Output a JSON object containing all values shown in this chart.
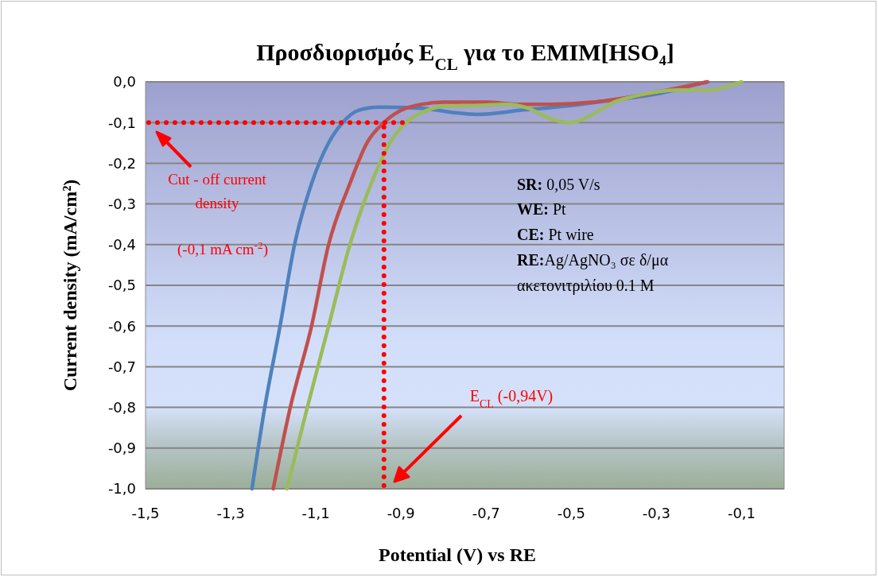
{
  "chart_data": {
    "type": "line",
    "title": "Προσδιορισμός E$_{CL}$ για το EMIM[HSO₄]",
    "xlabel": "Potential (V) vs RE",
    "ylabel": "Current  density (mA/cm²)",
    "xlim": [
      -1.5,
      0
    ],
    "xticks": [
      {
        "value": -1.5,
        "label": "-1,5"
      },
      {
        "value": -1.3,
        "label": "-1,3"
      },
      {
        "value": -1.1,
        "label": "-1,1"
      },
      {
        "value": -0.9,
        "label": "-0,9"
      },
      {
        "value": -0.7,
        "label": "-0,7"
      },
      {
        "value": -0.5,
        "label": "-0,5"
      },
      {
        "value": -0.3,
        "label": "-0,3"
      },
      {
        "value": -0.1,
        "label": "-0,1"
      }
    ],
    "ylim": [
      -1,
      0
    ],
    "yticks": [
      {
        "value": 0,
        "label": "0,0"
      },
      {
        "value": -0.1,
        "label": "-0,1"
      },
      {
        "value": -0.2,
        "label": "-0,2"
      },
      {
        "value": -0.3,
        "label": "-0,3"
      },
      {
        "value": -0.4,
        "label": "-0,4"
      },
      {
        "value": -0.5,
        "label": "-0,5"
      },
      {
        "value": -0.6,
        "label": "-0,6"
      },
      {
        "value": -0.7,
        "label": "-0,7"
      },
      {
        "value": -0.8,
        "label": "-0,8"
      },
      {
        "value": -0.9,
        "label": "-0,9"
      },
      {
        "value": -1,
        "label": "-1,0"
      }
    ],
    "grid": "y",
    "marker": "none",
    "line_style": "solid",
    "series": [
      {
        "color": "#4f81bd",
        "x": [
          -1.25,
          -1.22,
          -1.184,
          -1.15,
          -1.11,
          -1.07,
          -1.037,
          -1.0,
          -0.95,
          -0.85,
          -0.78,
          -0.72,
          -0.62,
          -0.5,
          -0.4,
          -0.3,
          -0.2,
          -0.18
        ],
        "values": [
          -1,
          -0.8,
          -0.6,
          -0.4,
          -0.25,
          -0.15,
          -0.1,
          -0.07,
          -0.062,
          -0.065,
          -0.075,
          -0.08,
          -0.07,
          -0.058,
          -0.045,
          -0.03,
          -0.005,
          0
        ]
      },
      {
        "color": "#c0504d",
        "x": [
          -1.2,
          -1.16,
          -1.11,
          -1.07,
          -1.02,
          -0.98,
          -0.94,
          -0.9,
          -0.85,
          -0.8,
          -0.7,
          -0.62,
          -0.55,
          -0.45,
          -0.35,
          -0.25,
          -0.18
        ],
        "values": [
          -1,
          -0.8,
          -0.6,
          -0.4,
          -0.25,
          -0.15,
          -0.1,
          -0.07,
          -0.055,
          -0.05,
          -0.05,
          -0.055,
          -0.055,
          -0.05,
          -0.035,
          -0.015,
          0
        ]
      },
      {
        "color": "#9bbb59",
        "x": [
          -1.168,
          -1.12,
          -1.07,
          -1.02,
          -0.97,
          -0.92,
          -0.888,
          -0.85,
          -0.8,
          -0.72,
          -0.65,
          -0.6,
          -0.55,
          -0.5,
          -0.45,
          -0.4,
          -0.35,
          -0.25,
          -0.17,
          -0.13,
          -0.1
        ],
        "values": [
          -1,
          -0.8,
          -0.6,
          -0.4,
          -0.25,
          -0.14,
          -0.1,
          -0.075,
          -0.06,
          -0.058,
          -0.055,
          -0.065,
          -0.09,
          -0.1,
          -0.08,
          -0.05,
          -0.035,
          -0.02,
          -0.02,
          -0.01,
          0
        ]
      }
    ],
    "ref_lines": [
      {
        "axis": "y",
        "value": -0.1,
        "color": "#ff0000",
        "line_style": "dotted"
      },
      {
        "axis": "x",
        "value": -0.94,
        "color": "#ff0000",
        "line_style": "dotted"
      }
    ],
    "annotations": [
      "Cut - off current",
      "density",
      "(-0,1 mA cm$^{-2}$)",
      "E$_{CL}$ (-0,94V)",
      "SR: 0,05 V/s",
      "WE: Pt",
      "CE: Pt wire",
      "RE:Ag/AgNO₃ σε δ/μα",
      "ακετονιτριλίου 0.1 M"
    ]
  }
}
